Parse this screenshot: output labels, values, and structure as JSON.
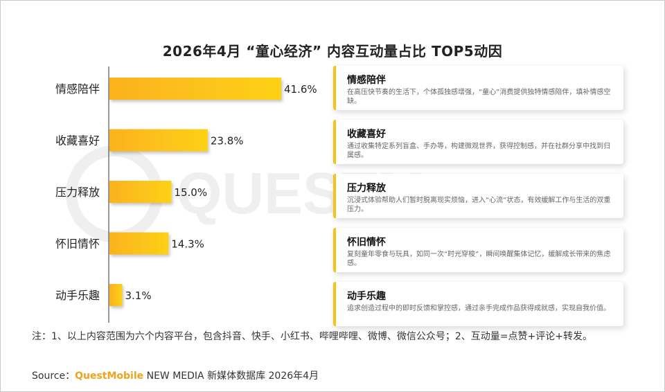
{
  "title": "2026年4月 “童心经济” 内容互动量占比 TOP5动因",
  "colors": {
    "bar_start": "#fbb21f",
    "bar_end": "#fdd117",
    "accent": "#f8c21a",
    "brand": "#f0a21a"
  },
  "chart_data": {
    "type": "bar",
    "orientation": "horizontal",
    "categories": [
      "情感陪伴",
      "收藏喜好",
      "压力释放",
      "怀旧情怀",
      "动手乐趣"
    ],
    "values": [
      41.6,
      23.8,
      15.0,
      14.3,
      3.1
    ],
    "value_labels": [
      "41.6%",
      "23.8%",
      "15.0%",
      "14.3%",
      "3.1%"
    ],
    "unit": "%",
    "xlim": [
      0,
      50
    ],
    "grid": false,
    "legend": "none"
  },
  "cards": [
    {
      "title": "情感陪伴",
      "desc": "在高压快节奏的生活下，个体孤独感增强，“童心”消费提供独特情感陪伴，填补情感空缺。"
    },
    {
      "title": "收藏喜好",
      "desc": "通过收集特定系列盲盒、手办等，构建微观世界，获得控制感，并在社群分享中找到归属感。"
    },
    {
      "title": "压力释放",
      "desc": "沉浸式体验帮助人们暂时脱离现实烦恼，进入“心流”状态，有效缓解工作与生活的双重压力。"
    },
    {
      "title": "怀旧情怀",
      "desc": "复刻童年零食与玩具，如同一次“时光穿梭”，瞬间唤醒集体记忆，缓解成长带来的焦虑感。"
    },
    {
      "title": "动手乐趣",
      "desc": "追求创造过程中的即时反馈和掌控感，通过亲手完成作品获得成就感，实现自我价值。"
    }
  ],
  "note": "注：1、以上内容范围为六个内容平台，包含抖音、快手、小红书、哔哩哔哩、微博、微信公众号；2、互动量=点赞+评论+转发。",
  "source": {
    "label": "Source：",
    "brand": "QuestMobile",
    "rest": " NEW MEDIA 新媒体数据库 2026年4月"
  },
  "watermark": {
    "text": "QUESTMOBILE"
  }
}
